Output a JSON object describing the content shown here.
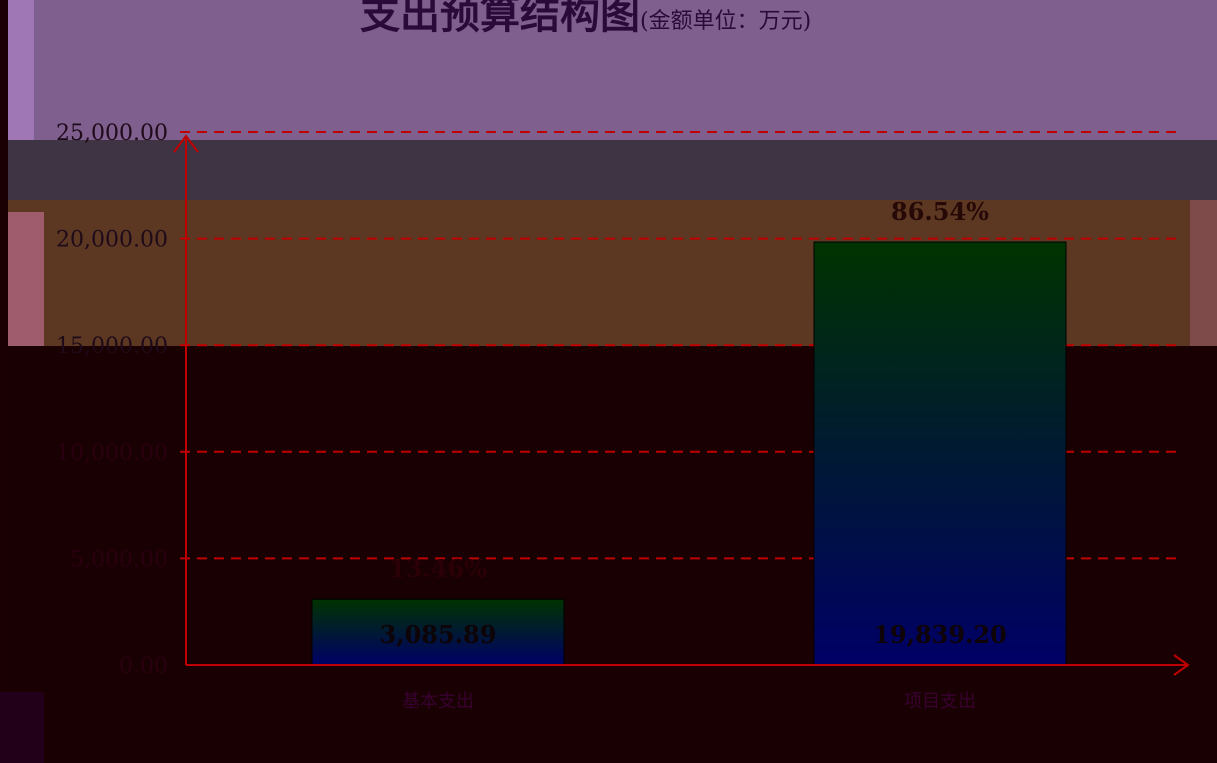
{
  "title": "支出预算结构图",
  "subtitle": "(金额单位：万元)",
  "colors": {
    "axis": "#c00000",
    "grid": "#c00000",
    "bar_top": "#003300",
    "bar_bottom": "#000066"
  },
  "chart_data": {
    "type": "bar",
    "title": "支出预算结构图",
    "subtitle": "(金额单位：万元)",
    "categories": [
      "基本支出",
      "项目支出"
    ],
    "values": [
      3085.89,
      19839.2
    ],
    "value_labels": [
      "3,085.89",
      "19,839.20"
    ],
    "percent_labels": [
      "13.46%",
      "86.54%"
    ],
    "ylim": [
      0,
      25000
    ],
    "yticks": [
      0,
      5000,
      10000,
      15000,
      20000,
      25000
    ],
    "ytick_labels": [
      "0.00",
      "5,000.00",
      "10,000.00",
      "15,000.00",
      "20,000.00",
      "25,000.00"
    ],
    "grid": true,
    "xlabel": "",
    "ylabel": ""
  }
}
